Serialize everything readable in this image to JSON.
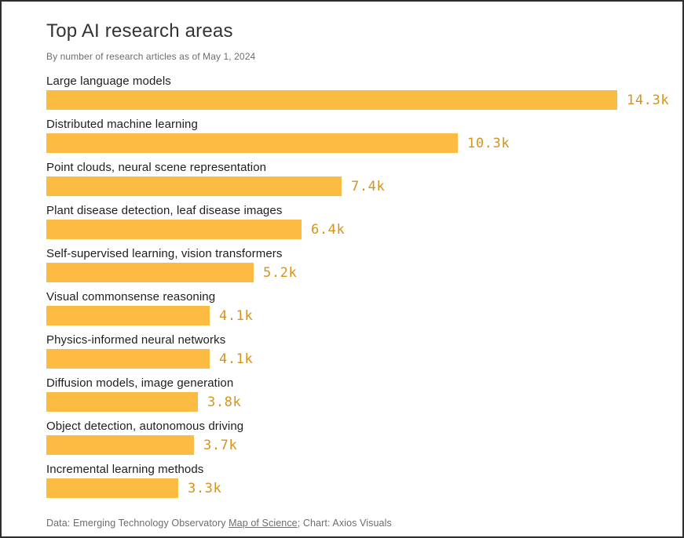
{
  "header": {
    "title": "Top AI research areas",
    "subtitle": "By number of research articles as of May 1, 2024"
  },
  "chart_data": {
    "type": "bar",
    "orientation": "horizontal",
    "title": "Top AI research areas",
    "subtitle": "By number of research articles as of May 1, 2024",
    "xlabel": "",
    "ylabel": "",
    "xlim": [
      0,
      14.3
    ],
    "unit": "k (thousands of research articles)",
    "grid": false,
    "legend": false,
    "bar_color": "#FCBC43",
    "value_label_color": "#D6941E",
    "categories": [
      "Large language models",
      "Distributed machine learning",
      "Point clouds, neural scene representation",
      "Plant disease detection, leaf disease images",
      "Self-supervised learning, vision transformers",
      "Visual commonsense reasoning",
      "Physics-informed neural networks",
      "Diffusion models, image generation",
      "Object detection, autonomous driving",
      "Incremental learning methods"
    ],
    "values": [
      14.3,
      10.3,
      7.4,
      6.4,
      5.2,
      4.1,
      4.1,
      3.8,
      3.7,
      3.3
    ],
    "value_labels": [
      "14.3k",
      "10.3k",
      "7.4k",
      "6.4k",
      "5.2k",
      "4.1k",
      "4.1k",
      "3.8k",
      "3.7k",
      "3.3k"
    ]
  },
  "footer": {
    "source_prefix": "Data: Emerging Technology Observatory ",
    "source_link": "Map of Science",
    "source_suffix": "; Chart: Axios Visuals"
  }
}
